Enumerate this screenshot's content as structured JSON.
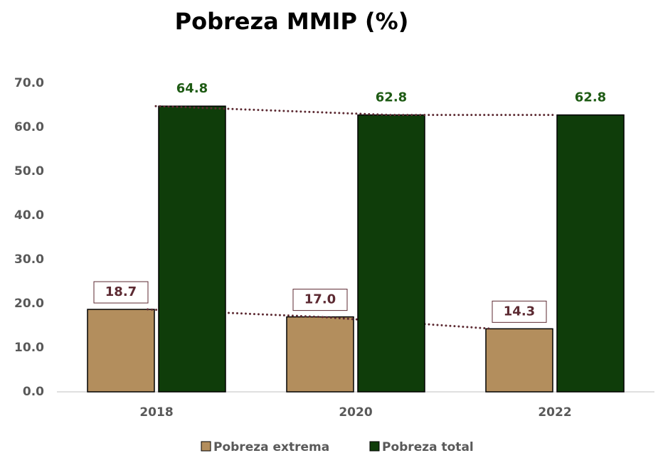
{
  "chart_data": {
    "type": "bar",
    "title": "Pobreza MMIP (%)",
    "categories": [
      "2018",
      "2020",
      "2022"
    ],
    "series": [
      {
        "name": "Pobreza extrema",
        "color": "#b38e5d",
        "values": [
          18.7,
          17.0,
          14.3
        ],
        "value_labels": [
          "18.7",
          "17.0",
          "14.3"
        ]
      },
      {
        "name": "Pobreza total",
        "color": "#0f3d0a",
        "values": [
          64.8,
          62.8,
          62.8
        ],
        "value_labels": [
          "64.8",
          "62.8",
          "62.8"
        ]
      }
    ],
    "ylim": [
      0,
      70
    ],
    "yticks": [
      {
        "value": 0,
        "label": "0.0"
      },
      {
        "value": 10,
        "label": "10.0"
      },
      {
        "value": 20,
        "label": "20.0"
      },
      {
        "value": 30,
        "label": "30.0"
      },
      {
        "value": 40,
        "label": "40.0"
      },
      {
        "value": 50,
        "label": "50.0"
      },
      {
        "value": 60,
        "label": "60.0"
      },
      {
        "value": 70,
        "label": "70.0"
      }
    ],
    "legend": "bottom",
    "grid": false,
    "trend_lines": true
  }
}
